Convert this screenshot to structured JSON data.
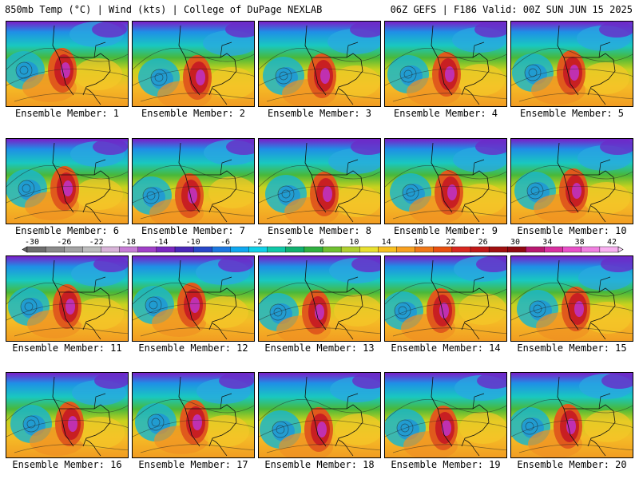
{
  "header": {
    "title_left": "850mb Temp (°C) | Wind (kts) | College of DuPage NEXLAB",
    "title_right": "06Z GEFS | F186 Valid: 00Z SUN JUN 15 2025"
  },
  "panels": [
    {
      "label": "Ensemble Member: 1"
    },
    {
      "label": "Ensemble Member: 2"
    },
    {
      "label": "Ensemble Member: 3"
    },
    {
      "label": "Ensemble Member: 4"
    },
    {
      "label": "Ensemble Member: 5"
    },
    {
      "label": "Ensemble Member: 6"
    },
    {
      "label": "Ensemble Member: 7"
    },
    {
      "label": "Ensemble Member: 8"
    },
    {
      "label": "Ensemble Member: 9"
    },
    {
      "label": "Ensemble Member: 10"
    },
    {
      "label": "Ensemble Member: 11"
    },
    {
      "label": "Ensemble Member: 12"
    },
    {
      "label": "Ensemble Member: 13"
    },
    {
      "label": "Ensemble Member: 14"
    },
    {
      "label": "Ensemble Member: 15"
    },
    {
      "label": "Ensemble Member: 16"
    },
    {
      "label": "Ensemble Member: 17"
    },
    {
      "label": "Ensemble Member: 18"
    },
    {
      "label": "Ensemble Member: 19"
    },
    {
      "label": "Ensemble Member: 20"
    }
  ],
  "colorbar": {
    "ticks": [
      "-30",
      "-26",
      "-22",
      "-18",
      "-14",
      "-10",
      "-6",
      "-2",
      "2",
      "6",
      "10",
      "14",
      "18",
      "22",
      "26",
      "30",
      "34",
      "38",
      "42"
    ],
    "colors": [
      "#6e6e6e",
      "#8a8a8a",
      "#a4a4a4",
      "#bdbdbd",
      "#d8b4d8",
      "#c77dd6",
      "#a040c8",
      "#7a28c0",
      "#4a28b8",
      "#2848c8",
      "#1c78e0",
      "#10a8f0",
      "#10d0e8",
      "#10c8a8",
      "#10b070",
      "#30b040",
      "#70c030",
      "#b0d030",
      "#e8e030",
      "#f8c020",
      "#f8a020",
      "#f07818",
      "#e85010",
      "#d82820",
      "#c01818",
      "#a01010",
      "#900810",
      "#b81870",
      "#d830a0",
      "#e850c8",
      "#f080e0",
      "#f8b0f0"
    ]
  }
}
